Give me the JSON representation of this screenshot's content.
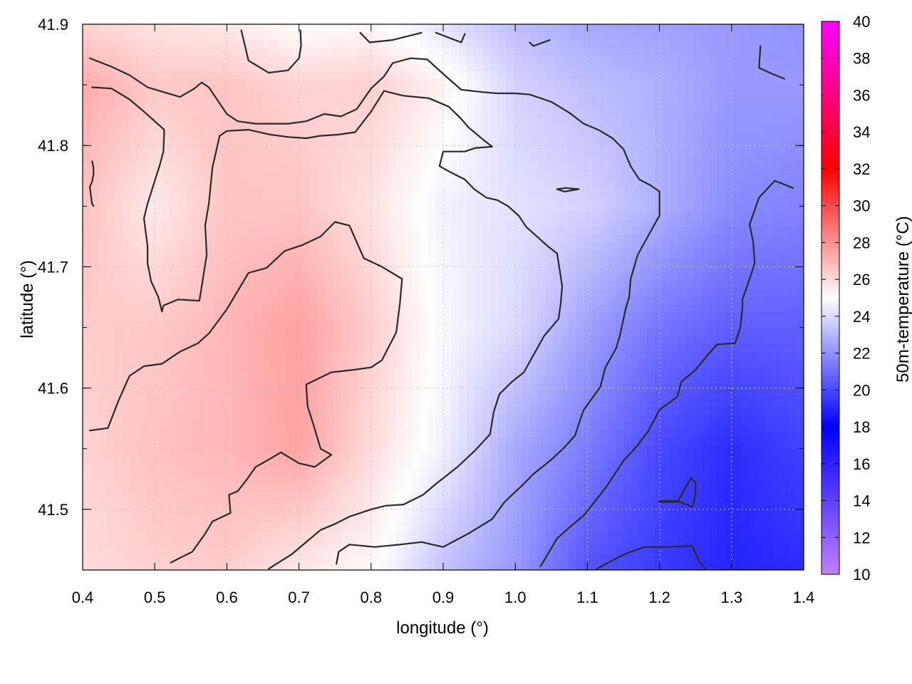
{
  "chart_data": {
    "type": "heatmap",
    "xlabel": "longitude (°)",
    "ylabel": "latitude (°)",
    "xlim": [
      0.4,
      1.4
    ],
    "ylim": [
      41.45,
      41.9
    ],
    "x_ticks": [
      "0.4",
      "0.5",
      "0.6",
      "0.7",
      "0.8",
      "0.9",
      "1.0",
      "1.1",
      "1.2",
      "1.3",
      "1.4"
    ],
    "y_ticks": [
      "41.5",
      "41.6",
      "41.7",
      "41.8",
      "41.9"
    ],
    "grid": true,
    "colorbar": {
      "label": "50m-temperature (°C)",
      "range": [
        10,
        40
      ],
      "ticks": [
        "10",
        "12",
        "14",
        "16",
        "18",
        "20",
        "22",
        "24",
        "26",
        "28",
        "30",
        "32",
        "34",
        "36",
        "38",
        "40"
      ],
      "stops": [
        {
          "v": 10,
          "color": "#c080ff"
        },
        {
          "v": 18,
          "color": "#0000ff"
        },
        {
          "v": 25,
          "color": "#ffffff"
        },
        {
          "v": 32,
          "color": "#ff0000"
        },
        {
          "v": 40,
          "color": "#ff00ff"
        }
      ]
    },
    "temperature_field": {
      "x": [
        0.4,
        0.5,
        0.6,
        0.7,
        0.8,
        0.9,
        1.0,
        1.1,
        1.2,
        1.3,
        1.4
      ],
      "y": [
        41.45,
        41.55,
        41.65,
        41.75,
        41.85,
        41.9
      ],
      "values": [
        [
          26.0,
          26.3,
          26.4,
          25.6,
          25.2,
          23.3,
          22.2,
          20.3,
          19.6,
          19.0,
          19.2
        ],
        [
          26.2,
          26.7,
          27.0,
          27.5,
          26.0,
          24.6,
          22.6,
          21.4,
          20.0,
          19.2,
          19.8
        ],
        [
          26.4,
          26.5,
          27.0,
          27.6,
          26.4,
          24.8,
          24.0,
          22.4,
          21.2,
          20.6,
          20.6
        ],
        [
          26.7,
          25.6,
          26.6,
          26.6,
          25.8,
          24.6,
          24.2,
          23.8,
          22.8,
          21.8,
          21.6
        ],
        [
          27.3,
          26.5,
          26.6,
          26.2,
          26.3,
          25.4,
          23.8,
          23.2,
          22.8,
          22.2,
          22.2
        ],
        [
          26.2,
          25.8,
          25.6,
          25.0,
          25.2,
          24.2,
          23.2,
          22.6,
          22.4,
          22.2,
          22.0
        ]
      ]
    },
    "contour_color": "#2a2a2a",
    "contours": [
      [
        [
          0.41,
          41.872
        ],
        [
          0.44,
          41.865
        ],
        [
          0.465,
          41.858
        ],
        [
          0.49,
          41.848
        ],
        [
          0.535,
          41.84
        ],
        [
          0.555,
          41.847
        ],
        [
          0.565,
          41.852
        ],
        [
          0.575,
          41.848
        ],
        [
          0.6,
          41.826
        ],
        [
          0.615,
          41.82
        ],
        [
          0.64,
          41.818
        ],
        [
          0.685,
          41.818
        ],
        [
          0.71,
          41.82
        ],
        [
          0.735,
          41.826
        ],
        [
          0.758,
          41.824
        ],
        [
          0.78,
          41.83
        ],
        [
          0.8,
          41.847
        ],
        [
          0.818,
          41.857
        ],
        [
          0.83,
          41.868
        ],
        [
          0.855,
          41.872
        ],
        [
          0.878,
          41.871
        ],
        [
          0.902,
          41.858
        ],
        [
          0.925,
          41.846
        ],
        [
          0.955,
          41.844
        ],
        [
          0.975,
          41.843
        ],
        [
          1.0,
          41.843
        ],
        [
          1.02,
          41.842
        ],
        [
          1.05,
          41.836
        ],
        [
          1.075,
          41.827
        ],
        [
          1.095,
          41.818
        ],
        [
          1.115,
          41.813
        ],
        [
          1.135,
          41.806
        ],
        [
          1.15,
          41.797
        ],
        [
          1.16,
          41.783
        ],
        [
          1.172,
          41.772
        ],
        [
          1.188,
          41.767
        ],
        [
          1.2,
          41.762
        ],
        [
          1.2,
          41.753
        ],
        [
          1.2,
          41.742
        ],
        [
          1.195,
          41.737
        ],
        [
          1.17,
          41.71
        ],
        [
          1.16,
          41.69
        ],
        [
          1.158,
          41.675
        ],
        [
          1.153,
          41.665
        ],
        [
          1.145,
          41.643
        ],
        [
          1.14,
          41.633
        ],
        [
          1.125,
          41.617
        ],
        [
          1.118,
          41.601
        ],
        [
          1.095,
          41.582
        ],
        [
          1.09,
          41.574
        ],
        [
          1.083,
          41.561
        ],
        [
          1.068,
          41.551
        ],
        [
          1.05,
          41.541
        ],
        [
          1.025,
          41.529
        ],
        [
          1.01,
          41.52
        ],
        [
          0.985,
          41.506
        ],
        [
          0.968,
          41.492
        ],
        [
          0.935,
          41.48
        ],
        [
          0.9,
          41.469
        ],
        [
          0.87,
          41.473
        ],
        [
          0.84,
          41.471
        ],
        [
          0.805,
          41.469
        ],
        [
          0.77,
          41.471
        ],
        [
          0.755,
          41.465
        ],
        [
          0.752,
          41.455
        ]
      ],
      [
        [
          0.413,
          41.848
        ],
        [
          0.44,
          41.847
        ],
        [
          0.465,
          41.838
        ],
        [
          0.485,
          41.828
        ],
        [
          0.5,
          41.82
        ],
        [
          0.513,
          41.813
        ],
        [
          0.513,
          41.81
        ],
        [
          0.512,
          41.795
        ],
        [
          0.507,
          41.784
        ],
        [
          0.49,
          41.752
        ],
        [
          0.485,
          41.74
        ],
        [
          0.49,
          41.717
        ],
        [
          0.49,
          41.703
        ],
        [
          0.495,
          41.688
        ],
        [
          0.505,
          41.675
        ],
        [
          0.51,
          41.663
        ],
        [
          0.512,
          41.668
        ],
        [
          0.532,
          41.673
        ],
        [
          0.562,
          41.672
        ],
        [
          0.57,
          41.702
        ],
        [
          0.572,
          41.71
        ],
        [
          0.57,
          41.734
        ],
        [
          0.575,
          41.752
        ],
        [
          0.58,
          41.782
        ],
        [
          0.59,
          41.808
        ],
        [
          0.6,
          41.812
        ],
        [
          0.63,
          41.813
        ],
        [
          0.66,
          41.809
        ],
        [
          0.685,
          41.807
        ],
        [
          0.71,
          41.806
        ],
        [
          0.73,
          41.808
        ],
        [
          0.755,
          41.809
        ],
        [
          0.778,
          41.811
        ],
        [
          0.8,
          41.828
        ],
        [
          0.818,
          41.845
        ],
        [
          0.845,
          41.841
        ],
        [
          0.88,
          41.839
        ],
        [
          0.908,
          41.832
        ],
        [
          0.925,
          41.822
        ],
        [
          0.935,
          41.815
        ],
        [
          0.955,
          41.805
        ],
        [
          0.968,
          41.799
        ],
        [
          0.945,
          41.798
        ],
        [
          0.93,
          41.795
        ],
        [
          0.9,
          41.795
        ],
        [
          0.897,
          41.788
        ],
        [
          0.895,
          41.783
        ],
        [
          0.91,
          41.778
        ],
        [
          0.93,
          41.772
        ],
        [
          0.943,
          41.764
        ],
        [
          0.96,
          41.757
        ],
        [
          0.975,
          41.755
        ],
        [
          0.99,
          41.75
        ],
        [
          1.005,
          41.742
        ],
        [
          1.015,
          41.733
        ],
        [
          1.03,
          41.725
        ],
        [
          1.045,
          41.717
        ],
        [
          1.058,
          41.711
        ],
        [
          1.065,
          41.684
        ],
        [
          1.063,
          41.67
        ],
        [
          1.06,
          41.657
        ],
        [
          1.04,
          41.643
        ],
        [
          1.025,
          41.627
        ],
        [
          1.012,
          41.613
        ],
        [
          0.995,
          41.605
        ],
        [
          0.978,
          41.595
        ],
        [
          0.97,
          41.58
        ],
        [
          0.965,
          41.562
        ],
        [
          0.945,
          41.549
        ],
        [
          0.92,
          41.535
        ],
        [
          0.89,
          41.521
        ],
        [
          0.872,
          41.512
        ],
        [
          0.845,
          41.504
        ],
        [
          0.82,
          41.503
        ],
        [
          0.8,
          41.5
        ],
        [
          0.77,
          41.494
        ],
        [
          0.75,
          41.488
        ],
        [
          0.73,
          41.483
        ],
        [
          0.71,
          41.473
        ],
        [
          0.69,
          41.463
        ],
        [
          0.658,
          41.451
        ]
      ],
      [
        [
          0.413,
          41.787
        ],
        [
          0.415,
          41.782
        ],
        [
          0.415,
          41.776
        ],
        [
          0.413,
          41.77
        ],
        [
          0.41,
          41.766
        ],
        [
          0.413,
          41.752
        ],
        [
          0.415,
          41.75
        ]
      ],
      [
        [
          0.41,
          41.565
        ],
        [
          0.435,
          41.567
        ],
        [
          0.45,
          41.59
        ],
        [
          0.465,
          41.61
        ],
        [
          0.485,
          41.618
        ],
        [
          0.51,
          41.62
        ],
        [
          0.535,
          41.63
        ],
        [
          0.56,
          41.637
        ],
        [
          0.575,
          41.645
        ],
        [
          0.6,
          41.665
        ],
        [
          0.63,
          41.695
        ],
        [
          0.655,
          41.699
        ],
        [
          0.68,
          41.713
        ],
        [
          0.705,
          41.718
        ],
        [
          0.73,
          41.725
        ],
        [
          0.75,
          41.737
        ],
        [
          0.77,
          41.734
        ],
        [
          0.79,
          41.707
        ],
        [
          0.815,
          41.7
        ],
        [
          0.843,
          41.69
        ],
        [
          0.84,
          41.67
        ],
        [
          0.835,
          41.646
        ],
        [
          0.815,
          41.623
        ],
        [
          0.8,
          41.617
        ],
        [
          0.775,
          41.615
        ],
        [
          0.745,
          41.613
        ],
        [
          0.71,
          41.603
        ],
        [
          0.712,
          41.585
        ],
        [
          0.72,
          41.57
        ],
        [
          0.73,
          41.55
        ],
        [
          0.745,
          41.545
        ],
        [
          0.722,
          41.535
        ],
        [
          0.7,
          41.538
        ],
        [
          0.675,
          41.547
        ],
        [
          0.655,
          41.54
        ],
        [
          0.64,
          41.535
        ],
        [
          0.627,
          41.524
        ],
        [
          0.615,
          41.515
        ],
        [
          0.603,
          41.512
        ],
        [
          0.605,
          41.497
        ],
        [
          0.58,
          41.49
        ],
        [
          0.57,
          41.48
        ],
        [
          0.552,
          41.465
        ],
        [
          0.535,
          41.46
        ],
        [
          0.522,
          41.456
        ]
      ],
      [
        [
          0.62,
          41.895
        ],
        [
          0.63,
          41.87
        ],
        [
          0.658,
          41.86
        ],
        [
          0.685,
          41.862
        ],
        [
          0.7,
          41.872
        ],
        [
          0.703,
          41.882
        ],
        [
          0.702,
          41.895
        ]
      ],
      [
        [
          0.785,
          41.893
        ],
        [
          0.798,
          41.885
        ],
        [
          0.83,
          41.887
        ],
        [
          0.87,
          41.893
        ]
      ],
      [
        [
          0.89,
          41.893
        ],
        [
          0.925,
          41.885
        ],
        [
          0.93,
          41.892
        ]
      ],
      [
        [
          1.02,
          41.885
        ],
        [
          1.025,
          41.882
        ],
        [
          1.048,
          41.887
        ]
      ],
      [
        [
          1.058,
          41.764
        ],
        [
          1.07,
          41.765
        ],
        [
          1.088,
          41.764
        ],
        [
          1.068,
          41.762
        ],
        [
          1.058,
          41.764
        ]
      ],
      [
        [
          1.385,
          41.765
        ],
        [
          1.36,
          41.771
        ],
        [
          1.338,
          41.757
        ],
        [
          1.325,
          41.735
        ],
        [
          1.33,
          41.72
        ],
        [
          1.332,
          41.703
        ],
        [
          1.325,
          41.69
        ],
        [
          1.315,
          41.673
        ],
        [
          1.315,
          41.666
        ],
        [
          1.312,
          41.65
        ],
        [
          1.305,
          41.637
        ],
        [
          1.28,
          41.636
        ],
        [
          1.265,
          41.626
        ],
        [
          1.25,
          41.615
        ],
        [
          1.23,
          41.605
        ],
        [
          1.225,
          41.593
        ],
        [
          1.2,
          41.582
        ],
        [
          1.185,
          41.565
        ],
        [
          1.17,
          41.553
        ],
        [
          1.15,
          41.54
        ],
        [
          1.128,
          41.52
        ],
        [
          1.115,
          41.51
        ],
        [
          1.095,
          41.495
        ],
        [
          1.075,
          41.485
        ],
        [
          1.058,
          41.476
        ],
        [
          1.045,
          41.463
        ],
        [
          1.035,
          41.453
        ]
      ],
      [
        [
          1.373,
          41.855
        ],
        [
          1.353,
          41.86
        ],
        [
          1.338,
          41.864
        ],
        [
          1.34,
          41.882
        ]
      ],
      [
        [
          1.2,
          41.507
        ],
        [
          1.225,
          41.507
        ],
        [
          1.246,
          41.502
        ],
        [
          1.25,
          41.513
        ],
        [
          1.25,
          41.522
        ],
        [
          1.244,
          41.526
        ],
        [
          1.238,
          41.52
        ],
        [
          1.225,
          41.506
        ],
        [
          1.2,
          41.506
        ]
      ],
      [
        [
          1.113,
          41.451
        ],
        [
          1.135,
          41.458
        ],
        [
          1.155,
          41.464
        ],
        [
          1.18,
          41.469
        ],
        [
          1.212,
          41.469
        ],
        [
          1.245,
          41.47
        ],
        [
          1.255,
          41.457
        ],
        [
          1.265,
          41.45
        ]
      ]
    ]
  }
}
